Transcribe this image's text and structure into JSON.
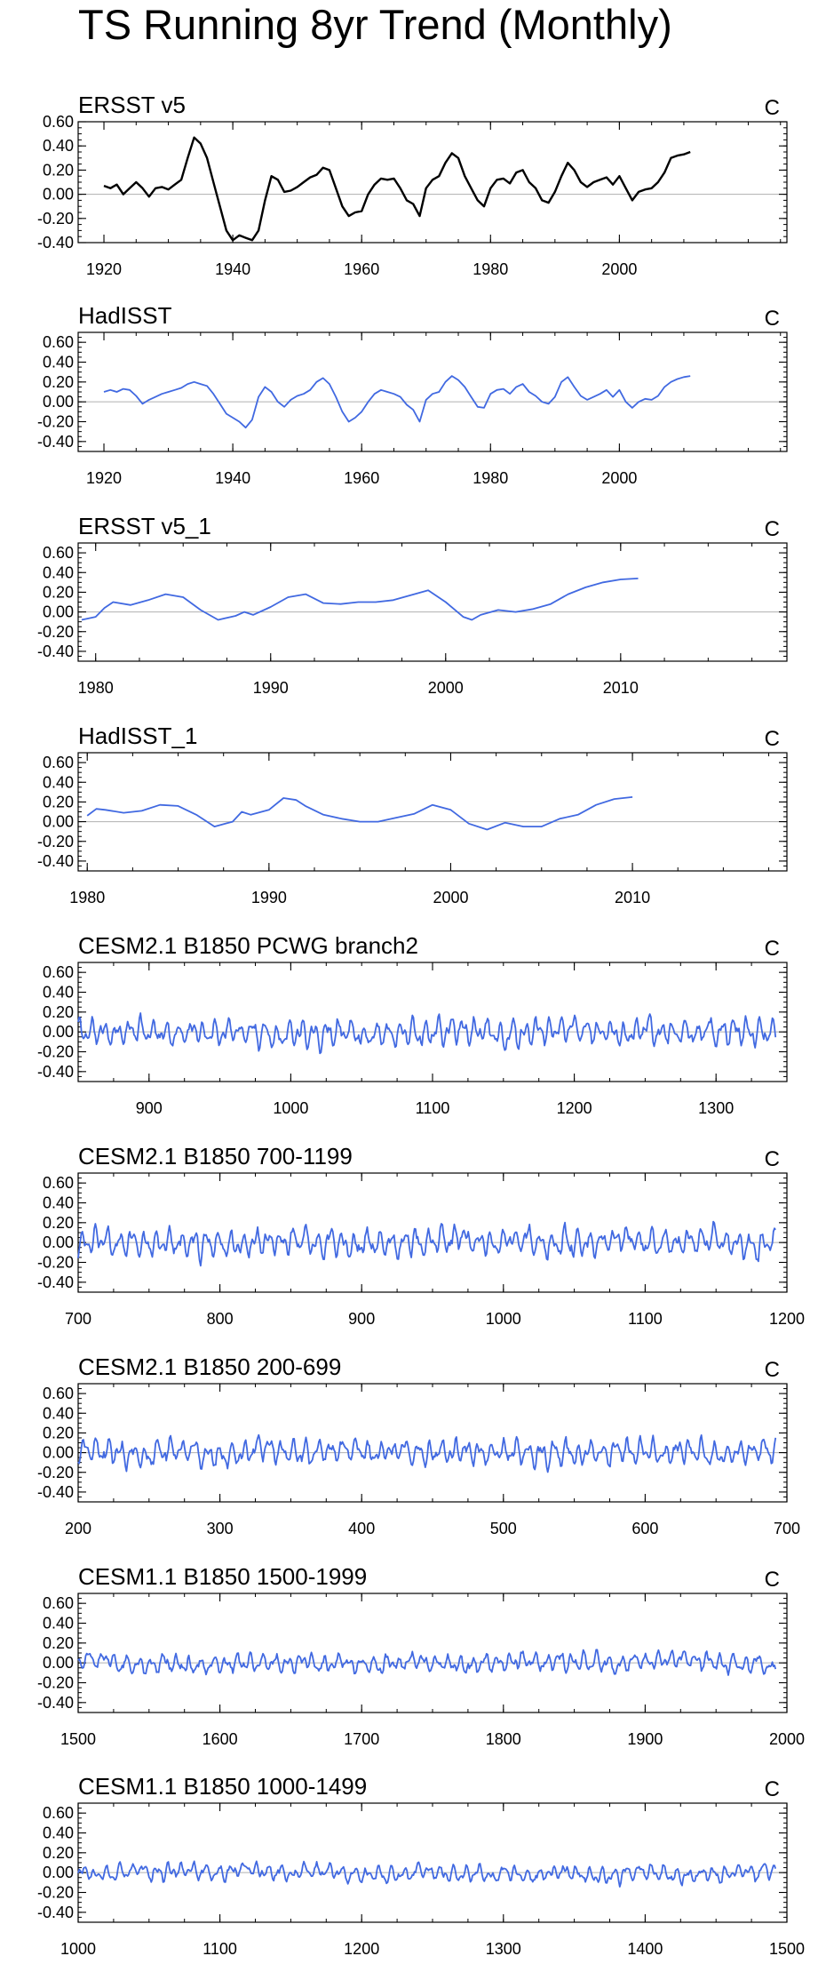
{
  "title": "TS Running 8yr Trend (Monthly)",
  "units": "C",
  "colors": {
    "obs_line": "#000000",
    "model_line": "#4169e1",
    "zero_line": "#b0b0b0",
    "axes": "#000000"
  },
  "chart_data": [
    {
      "type": "line",
      "title": "ERSST v5",
      "units": "C",
      "color": "#000000",
      "xlim": [
        1916,
        2026
      ],
      "ylim": [
        -0.4,
        0.6
      ],
      "xticks": [
        1920,
        1940,
        1960,
        1980,
        2000
      ],
      "yticks": [
        -0.4,
        -0.2,
        0.0,
        0.2,
        0.4,
        0.6
      ],
      "ytick_labels": [
        "-0.40",
        "-0.20",
        "0.00",
        "0.20",
        "0.40",
        "0.60"
      ],
      "x": [
        1920,
        1921,
        1922,
        1923,
        1924,
        1925,
        1926,
        1927,
        1928,
        1929,
        1930,
        1931,
        1932,
        1933,
        1934,
        1935,
        1936,
        1937,
        1938,
        1939,
        1940,
        1941,
        1942,
        1943,
        1944,
        1945,
        1946,
        1947,
        1948,
        1949,
        1950,
        1951,
        1952,
        1953,
        1954,
        1955,
        1956,
        1957,
        1958,
        1959,
        1960,
        1961,
        1962,
        1963,
        1964,
        1965,
        1966,
        1967,
        1968,
        1969,
        1970,
        1971,
        1972,
        1973,
        1974,
        1975,
        1976,
        1977,
        1978,
        1979,
        1980,
        1981,
        1982,
        1983,
        1984,
        1985,
        1986,
        1987,
        1988,
        1989,
        1990,
        1991,
        1992,
        1993,
        1994,
        1995,
        1996,
        1997,
        1998,
        1999,
        2000,
        2001,
        2002,
        2003,
        2004,
        2005,
        2006,
        2007,
        2008,
        2009,
        2010,
        2011
      ],
      "y": [
        0.07,
        0.05,
        0.08,
        0.0,
        0.05,
        0.1,
        0.05,
        -0.02,
        0.05,
        0.06,
        0.04,
        0.08,
        0.12,
        0.3,
        0.47,
        0.42,
        0.3,
        0.1,
        -0.1,
        -0.3,
        -0.38,
        -0.34,
        -0.36,
        -0.38,
        -0.3,
        -0.05,
        0.15,
        0.12,
        0.02,
        0.03,
        0.06,
        0.1,
        0.14,
        0.16,
        0.22,
        0.2,
        0.05,
        -0.1,
        -0.18,
        -0.15,
        -0.14,
        0.0,
        0.08,
        0.13,
        0.12,
        0.13,
        0.05,
        -0.05,
        -0.08,
        -0.18,
        0.05,
        0.12,
        0.15,
        0.26,
        0.34,
        0.3,
        0.15,
        0.05,
        -0.05,
        -0.1,
        0.05,
        0.12,
        0.13,
        0.09,
        0.18,
        0.2,
        0.1,
        0.05,
        -0.05,
        -0.07,
        0.02,
        0.15,
        0.26,
        0.2,
        0.1,
        0.06,
        0.1,
        0.12,
        0.14,
        0.08,
        0.15,
        0.05,
        -0.05,
        0.02,
        0.04,
        0.05,
        0.1,
        0.18,
        0.3,
        0.32,
        0.33,
        0.35
      ]
    },
    {
      "type": "line",
      "title": "HadISST",
      "units": "C",
      "color": "#4169e1",
      "xlim": [
        1916,
        2026
      ],
      "ylim": [
        -0.5,
        0.7
      ],
      "xticks": [
        1920,
        1940,
        1960,
        1980,
        2000
      ],
      "yticks": [
        -0.4,
        -0.2,
        0.0,
        0.2,
        0.4,
        0.6
      ],
      "ytick_labels": [
        "-0.40",
        "-0.20",
        "0.00",
        "0.20",
        "0.40",
        "0.60"
      ],
      "x": [
        1920,
        1921,
        1922,
        1923,
        1924,
        1925,
        1926,
        1927,
        1928,
        1929,
        1930,
        1931,
        1932,
        1933,
        1934,
        1935,
        1936,
        1937,
        1938,
        1939,
        1940,
        1941,
        1942,
        1943,
        1944,
        1945,
        1946,
        1947,
        1948,
        1949,
        1950,
        1951,
        1952,
        1953,
        1954,
        1955,
        1956,
        1957,
        1958,
        1959,
        1960,
        1961,
        1962,
        1963,
        1964,
        1965,
        1966,
        1967,
        1968,
        1969,
        1970,
        1971,
        1972,
        1973,
        1974,
        1975,
        1976,
        1977,
        1978,
        1979,
        1980,
        1981,
        1982,
        1983,
        1984,
        1985,
        1986,
        1987,
        1988,
        1989,
        1990,
        1991,
        1992,
        1993,
        1994,
        1995,
        1996,
        1997,
        1998,
        1999,
        2000,
        2001,
        2002,
        2003,
        2004,
        2005,
        2006,
        2007,
        2008,
        2009,
        2010,
        2011
      ],
      "y": [
        0.1,
        0.12,
        0.1,
        0.13,
        0.12,
        0.06,
        -0.02,
        0.02,
        0.05,
        0.08,
        0.1,
        0.12,
        0.14,
        0.18,
        0.2,
        0.18,
        0.16,
        0.08,
        -0.02,
        -0.12,
        -0.16,
        -0.2,
        -0.26,
        -0.18,
        0.05,
        0.15,
        0.1,
        0.0,
        -0.05,
        0.02,
        0.06,
        0.08,
        0.12,
        0.2,
        0.24,
        0.18,
        0.05,
        -0.1,
        -0.2,
        -0.16,
        -0.1,
        0.0,
        0.08,
        0.12,
        0.1,
        0.08,
        0.05,
        -0.03,
        -0.08,
        -0.2,
        0.02,
        0.08,
        0.1,
        0.2,
        0.26,
        0.22,
        0.15,
        0.05,
        -0.05,
        -0.06,
        0.08,
        0.12,
        0.13,
        0.08,
        0.15,
        0.18,
        0.1,
        0.06,
        0.0,
        -0.02,
        0.05,
        0.2,
        0.25,
        0.15,
        0.06,
        0.02,
        0.05,
        0.08,
        0.12,
        0.05,
        0.12,
        0.0,
        -0.06,
        0.0,
        0.03,
        0.02,
        0.06,
        0.15,
        0.2,
        0.23,
        0.25,
        0.26
      ]
    },
    {
      "type": "line",
      "title": "ERSST v5_1",
      "units": "C",
      "color": "#4169e1",
      "xlim": [
        1979,
        2019.5
      ],
      "ylim": [
        -0.5,
        0.7
      ],
      "xticks": [
        1980,
        1990,
        2000,
        2010
      ],
      "yticks": [
        -0.4,
        -0.2,
        0.0,
        0.2,
        0.4,
        0.6
      ],
      "ytick_labels": [
        "-0.40",
        "-0.20",
        "0.00",
        "0.20",
        "0.40",
        "0.60"
      ],
      "x": [
        1979.2,
        1980.0,
        1980.5,
        1981.0,
        1982.0,
        1983.0,
        1984.0,
        1985.0,
        1986.0,
        1987.0,
        1988.0,
        1988.5,
        1989.0,
        1990.0,
        1991.0,
        1992.0,
        1993.0,
        1994.0,
        1995.0,
        1996.0,
        1997.0,
        1998.0,
        1999.0,
        2000.0,
        2001.0,
        2001.5,
        2002.0,
        2003.0,
        2004.0,
        2005.0,
        2006.0,
        2007.0,
        2008.0,
        2009.0,
        2010.0,
        2011.0
      ],
      "y": [
        -0.08,
        -0.05,
        0.04,
        0.1,
        0.07,
        0.12,
        0.18,
        0.15,
        0.02,
        -0.08,
        -0.04,
        0.0,
        -0.03,
        0.05,
        0.15,
        0.18,
        0.09,
        0.08,
        0.1,
        0.1,
        0.12,
        0.17,
        0.22,
        0.1,
        -0.05,
        -0.08,
        -0.03,
        0.02,
        0.0,
        0.03,
        0.08,
        0.18,
        0.25,
        0.3,
        0.33,
        0.34
      ]
    },
    {
      "type": "line",
      "title": "HadISST_1",
      "units": "C",
      "color": "#4169e1",
      "xlim": [
        1979.5,
        2018.5
      ],
      "ylim": [
        -0.5,
        0.7
      ],
      "xticks": [
        1980,
        1990,
        2000,
        2010
      ],
      "yticks": [
        -0.4,
        -0.2,
        0.0,
        0.2,
        0.4,
        0.6
      ],
      "ytick_labels": [
        "-0.40",
        "-0.20",
        "0.00",
        "0.20",
        "0.40",
        "0.60"
      ],
      "x": [
        1980.0,
        1980.5,
        1981.0,
        1982.0,
        1983.0,
        1984.0,
        1985.0,
        1986.0,
        1987.0,
        1988.0,
        1988.5,
        1989.0,
        1990.0,
        1990.8,
        1991.5,
        1992.0,
        1993.0,
        1994.0,
        1995.0,
        1996.0,
        1997.0,
        1998.0,
        1999.0,
        2000.0,
        2001.0,
        2002.0,
        2003.0,
        2004.0,
        2005.0,
        2006.0,
        2007.0,
        2008.0,
        2009.0,
        2010.0
      ],
      "y": [
        0.06,
        0.13,
        0.12,
        0.09,
        0.11,
        0.17,
        0.16,
        0.07,
        -0.05,
        0.0,
        0.1,
        0.07,
        0.12,
        0.24,
        0.22,
        0.16,
        0.07,
        0.03,
        0.0,
        0.0,
        0.04,
        0.08,
        0.17,
        0.12,
        -0.02,
        -0.08,
        -0.01,
        -0.05,
        -0.05,
        0.03,
        0.07,
        0.17,
        0.23,
        0.25
      ]
    },
    {
      "type": "line",
      "title": "CESM2.1 B1850 PCWG branch2",
      "units": "C",
      "color": "#4169e1",
      "xlim": [
        850,
        1350
      ],
      "ylim": [
        -0.5,
        0.7
      ],
      "x_start": 850,
      "x_end": 1342,
      "amplitude": 0.15,
      "seed": 11,
      "xticks": [
        900,
        1000,
        1100,
        1200,
        1300
      ],
      "yticks": [
        -0.4,
        -0.2,
        0.0,
        0.2,
        0.4,
        0.6
      ],
      "ytick_labels": [
        "-0.40",
        "-0.20",
        "0.00",
        "0.20",
        "0.40",
        "0.60"
      ]
    },
    {
      "type": "line",
      "title": "CESM2.1 B1850 700-1199",
      "units": "C",
      "color": "#4169e1",
      "xlim": [
        700,
        1200
      ],
      "ylim": [
        -0.5,
        0.7
      ],
      "x_start": 700,
      "x_end": 1192,
      "amplitude": 0.15,
      "seed": 23,
      "xticks": [
        700,
        800,
        900,
        1000,
        1100,
        1200
      ],
      "yticks": [
        -0.4,
        -0.2,
        0.0,
        0.2,
        0.4,
        0.6
      ],
      "ytick_labels": [
        "-0.40",
        "-0.20",
        "0.00",
        "0.20",
        "0.40",
        "0.60"
      ]
    },
    {
      "type": "line",
      "title": "CESM2.1 B1850 200-699",
      "units": "C",
      "color": "#4169e1",
      "xlim": [
        200,
        700
      ],
      "ylim": [
        -0.5,
        0.7
      ],
      "x_start": 200,
      "x_end": 692,
      "amplitude": 0.14,
      "seed": 37,
      "xticks": [
        200,
        300,
        400,
        500,
        600,
        700
      ],
      "yticks": [
        -0.4,
        -0.2,
        0.0,
        0.2,
        0.4,
        0.6
      ],
      "ytick_labels": [
        "-0.40",
        "-0.20",
        "0.00",
        "0.20",
        "0.40",
        "0.60"
      ]
    },
    {
      "type": "line",
      "title": "CESM1.1 B1850 1500-1999",
      "units": "C",
      "color": "#4169e1",
      "xlim": [
        1500,
        2000
      ],
      "ylim": [
        -0.5,
        0.7
      ],
      "x_start": 1500,
      "x_end": 1992,
      "amplitude": 0.1,
      "seed": 53,
      "xticks": [
        1500,
        1600,
        1700,
        1800,
        1900,
        2000
      ],
      "yticks": [
        -0.4,
        -0.2,
        0.0,
        0.2,
        0.4,
        0.6
      ],
      "ytick_labels": [
        "-0.40",
        "-0.20",
        "0.00",
        "0.20",
        "0.40",
        "0.60"
      ]
    },
    {
      "type": "line",
      "title": "CESM1.1 B1850 1000-1499",
      "units": "C",
      "color": "#4169e1",
      "xlim": [
        1000,
        1500
      ],
      "ylim": [
        -0.5,
        0.7
      ],
      "x_start": 1000,
      "x_end": 1492,
      "amplitude": 0.09,
      "seed": 71,
      "xticks": [
        1000,
        1100,
        1200,
        1300,
        1400,
        1500
      ],
      "yticks": [
        -0.4,
        -0.2,
        0.0,
        0.2,
        0.4,
        0.6
      ],
      "ytick_labels": [
        "-0.40",
        "-0.20",
        "0.00",
        "0.20",
        "0.40",
        "0.60"
      ]
    }
  ]
}
